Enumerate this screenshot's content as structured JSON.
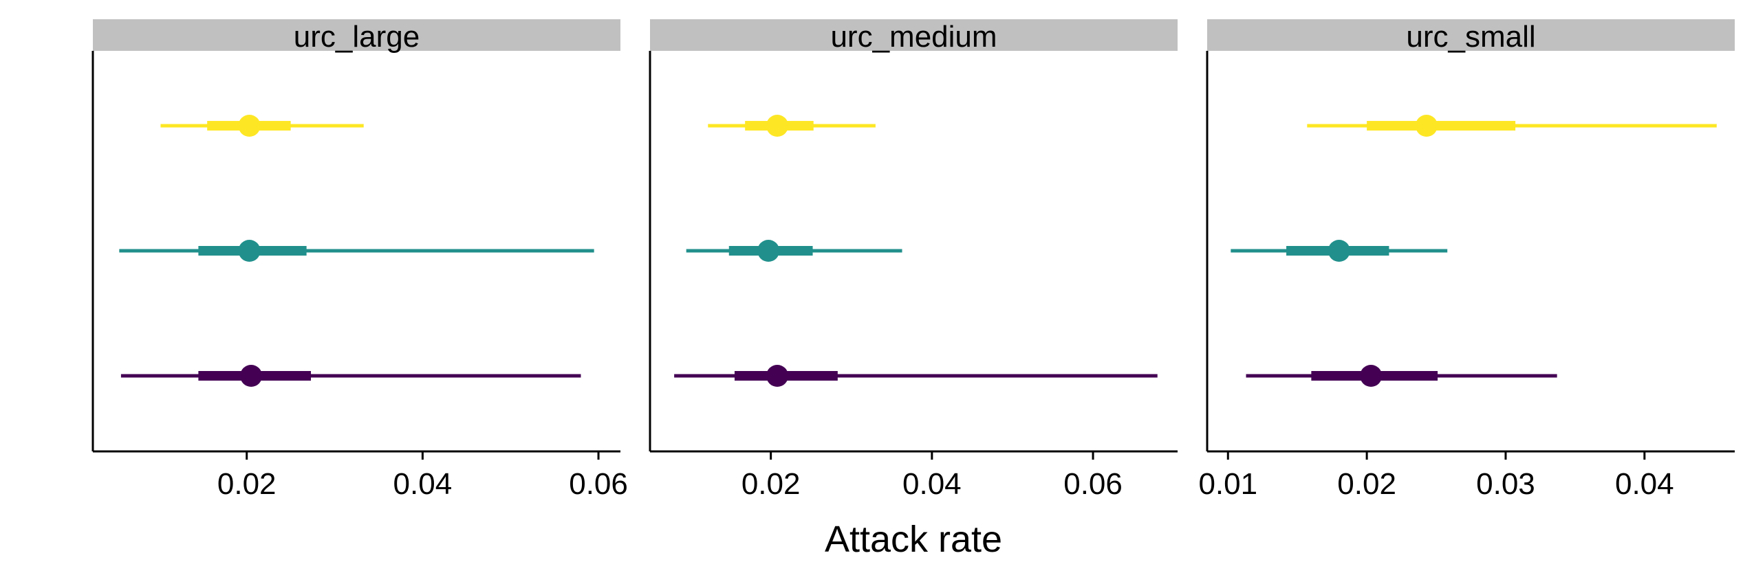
{
  "chart_data": {
    "type": "forest",
    "xlabel": "Attack rate",
    "grid": false,
    "legend": "none",
    "strip_color": "#c0c0c0",
    "series_colors": [
      "#440154",
      "#21908c",
      "#fde725"
    ],
    "panels": [
      {
        "title": "urc_large",
        "xlim": [
          0.0025,
          0.0625
        ],
        "ticks": [
          0.02,
          0.04,
          0.06
        ],
        "tick_labels": [
          "0.02",
          "0.04",
          "0.06"
        ],
        "points": [
          {
            "color": "#fde725",
            "median": 0.0203,
            "inner": [
              0.0155,
              0.025
            ],
            "outer": [
              0.0102,
              0.0333
            ]
          },
          {
            "color": "#21908c",
            "median": 0.0203,
            "inner": [
              0.0145,
              0.0268
            ],
            "outer": [
              0.0055,
              0.0595
            ]
          },
          {
            "color": "#440154",
            "median": 0.0205,
            "inner": [
              0.0145,
              0.0273
            ],
            "outer": [
              0.0057,
              0.058
            ]
          }
        ]
      },
      {
        "title": "urc_medium",
        "xlim": [
          0.005,
          0.0705
        ],
        "ticks": [
          0.02,
          0.04,
          0.06
        ],
        "tick_labels": [
          "0.02",
          "0.04",
          "0.06"
        ],
        "points": [
          {
            "color": "#fde725",
            "median": 0.0208,
            "inner": [
              0.0168,
              0.0253
            ],
            "outer": [
              0.0122,
              0.033
            ]
          },
          {
            "color": "#21908c",
            "median": 0.0197,
            "inner": [
              0.0148,
              0.0252
            ],
            "outer": [
              0.0095,
              0.0363
            ]
          },
          {
            "color": "#440154",
            "median": 0.0208,
            "inner": [
              0.0155,
              0.0283
            ],
            "outer": [
              0.008,
              0.068
            ]
          }
        ]
      },
      {
        "title": "urc_small",
        "xlim": [
          0.0085,
          0.0465
        ],
        "ticks": [
          0.01,
          0.02,
          0.03,
          0.04
        ],
        "tick_labels": [
          "0.01",
          "0.02",
          "0.03",
          "0.04"
        ],
        "points": [
          {
            "color": "#fde725",
            "median": 0.0243,
            "inner": [
              0.02,
              0.0307
            ],
            "outer": [
              0.0157,
              0.0452
            ]
          },
          {
            "color": "#21908c",
            "median": 0.018,
            "inner": [
              0.0142,
              0.0216
            ],
            "outer": [
              0.0102,
              0.0258
            ]
          },
          {
            "color": "#440154",
            "median": 0.0203,
            "inner": [
              0.016,
              0.0251
            ],
            "outer": [
              0.0113,
              0.0337
            ]
          }
        ]
      }
    ]
  }
}
